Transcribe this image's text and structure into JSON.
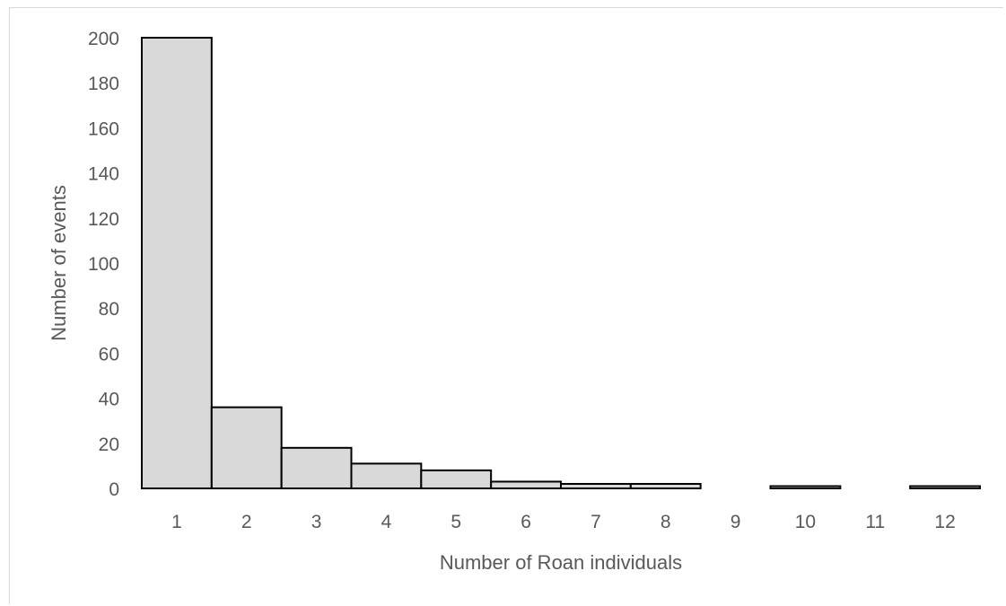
{
  "chart_data": {
    "type": "bar",
    "title": "",
    "xlabel": "Number of Roan individuals",
    "ylabel": "Number of events",
    "categories": [
      "1",
      "2",
      "3",
      "4",
      "5",
      "6",
      "7",
      "8",
      "9",
      "10",
      "11",
      "12"
    ],
    "values": [
      200,
      36,
      18,
      11,
      8,
      3,
      2,
      2,
      0,
      1,
      0,
      1
    ],
    "ylim": [
      0,
      200
    ],
    "yticks": [
      "0",
      "20",
      "40",
      "60",
      "80",
      "100",
      "120",
      "140",
      "160",
      "180",
      "200"
    ],
    "grid": false,
    "legend": "none",
    "colors": {
      "bar_fill": "#d9d9d9",
      "bar_stroke": "#000000",
      "text": "#595959",
      "frame": "#d9d9d9"
    }
  }
}
